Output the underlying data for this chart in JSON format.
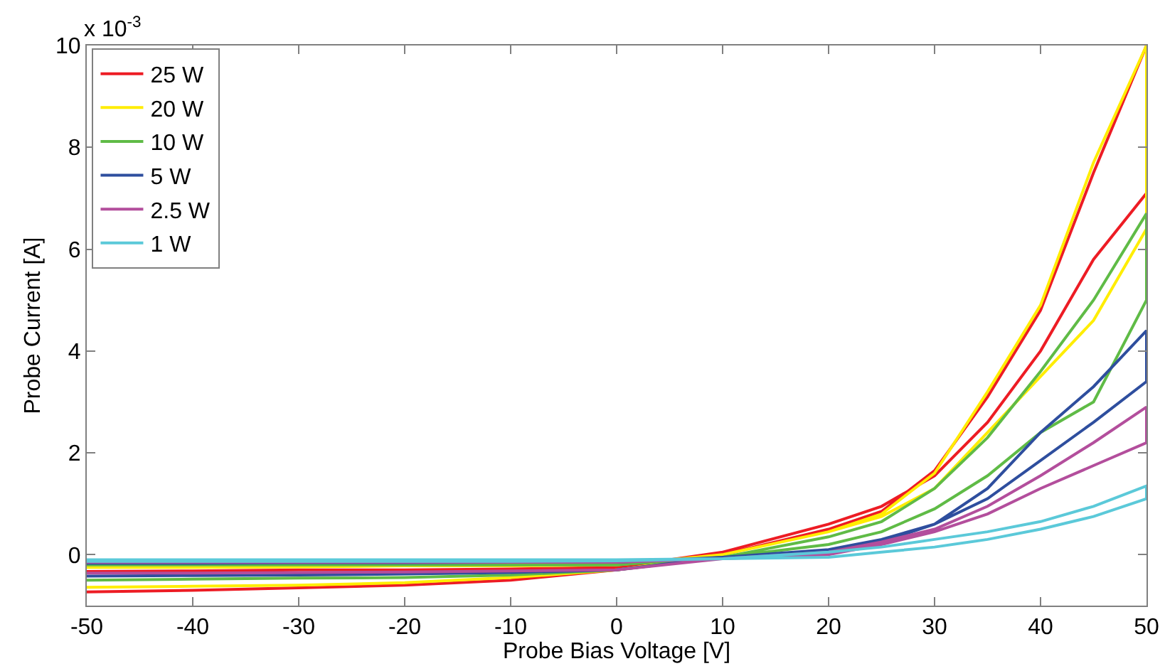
{
  "chart_data": {
    "type": "line",
    "xlabel": "Probe Bias Voltage [V]",
    "ylabel": "Probe Current [A]",
    "annotations": [
      "x 10$^{-3}$"
    ],
    "x": [
      -50,
      -40,
      -30,
      -20,
      -10,
      0,
      10,
      20,
      25,
      30,
      35,
      40,
      45,
      50,
      50,
      45,
      40,
      35,
      30,
      25,
      20,
      10,
      0,
      -10,
      -20,
      -30,
      -40,
      -50
    ],
    "series": [
      {
        "name": "25 W",
        "color": "#ed1c24",
        "values": [
          -0.73,
          -0.7,
          -0.65,
          -0.6,
          -0.5,
          -0.3,
          0,
          0.5,
          0.85,
          1.65,
          3.1,
          4.8,
          7.5,
          10,
          7.1,
          5.8,
          4,
          2.6,
          1.55,
          0.95,
          0.6,
          0.05,
          -0.25,
          -0.28,
          -0.3,
          -0.3,
          -0.32,
          -0.33
        ]
      },
      {
        "name": "20 W",
        "color": "#ffed00",
        "values": [
          -0.64,
          -0.62,
          -0.6,
          -0.55,
          -0.45,
          -0.3,
          0,
          0.45,
          0.8,
          1.6,
          3.2,
          4.9,
          7.7,
          10,
          6.4,
          4.6,
          3.5,
          2.4,
          1.3,
          0.75,
          0.45,
          0,
          -0.2,
          -0.22,
          -0.22,
          -0.24,
          -0.25,
          -0.25
        ]
      },
      {
        "name": "10 W",
        "color": "#5fbb46",
        "values": [
          -0.5,
          -0.48,
          -0.46,
          -0.45,
          -0.4,
          -0.3,
          -0.05,
          0.35,
          0.65,
          1.3,
          2.3,
          3.6,
          5,
          6.7,
          5,
          3,
          2.4,
          1.55,
          0.9,
          0.45,
          0.2,
          -0.05,
          -0.2,
          -0.2,
          -0.2,
          -0.2,
          -0.2,
          -0.2
        ]
      },
      {
        "name": "5 W",
        "color": "#2e4e9e",
        "values": [
          -0.42,
          -0.41,
          -0.4,
          -0.38,
          -0.35,
          -0.3,
          -0.05,
          0.1,
          0.25,
          0.6,
          1.3,
          2.4,
          3.3,
          4.4,
          3.4,
          2.6,
          1.85,
          1.1,
          0.6,
          0.3,
          0.1,
          -0.05,
          -0.15,
          -0.15,
          -0.16,
          -0.16,
          -0.17,
          -0.17
        ]
      },
      {
        "name": "2.5 W",
        "color": "#b34e9c",
        "values": [
          -0.36,
          -0.36,
          -0.35,
          -0.34,
          -0.32,
          -0.3,
          -0.08,
          0.05,
          0.25,
          0.5,
          0.95,
          1.55,
          2.2,
          2.9,
          2.2,
          1.75,
          1.3,
          0.8,
          0.45,
          0.2,
          0,
          -0.08,
          -0.15,
          -0.15,
          -0.15,
          -0.15,
          -0.15,
          -0.15
        ]
      },
      {
        "name": "1 W",
        "color": "#5bc9d9",
        "values": [
          -0.13,
          -0.13,
          -0.13,
          -0.13,
          -0.13,
          -0.12,
          -0.08,
          0.05,
          0.15,
          0.3,
          0.45,
          0.65,
          0.95,
          1.35,
          1.1,
          0.75,
          0.5,
          0.3,
          0.15,
          0.05,
          -0.05,
          -0.08,
          -0.1,
          -0.1,
          -0.1,
          -0.1,
          -0.1,
          -0.1
        ]
      }
    ],
    "xlim": [
      -50,
      50
    ],
    "xticks": [
      -50,
      -40,
      -30,
      -20,
      -10,
      0,
      10,
      20,
      30,
      40,
      50
    ],
    "ylim": [
      -1,
      10
    ],
    "yticks": [
      0,
      2,
      4,
      6,
      8,
      10
    ],
    "legend": "top left",
    "grid": false
  }
}
